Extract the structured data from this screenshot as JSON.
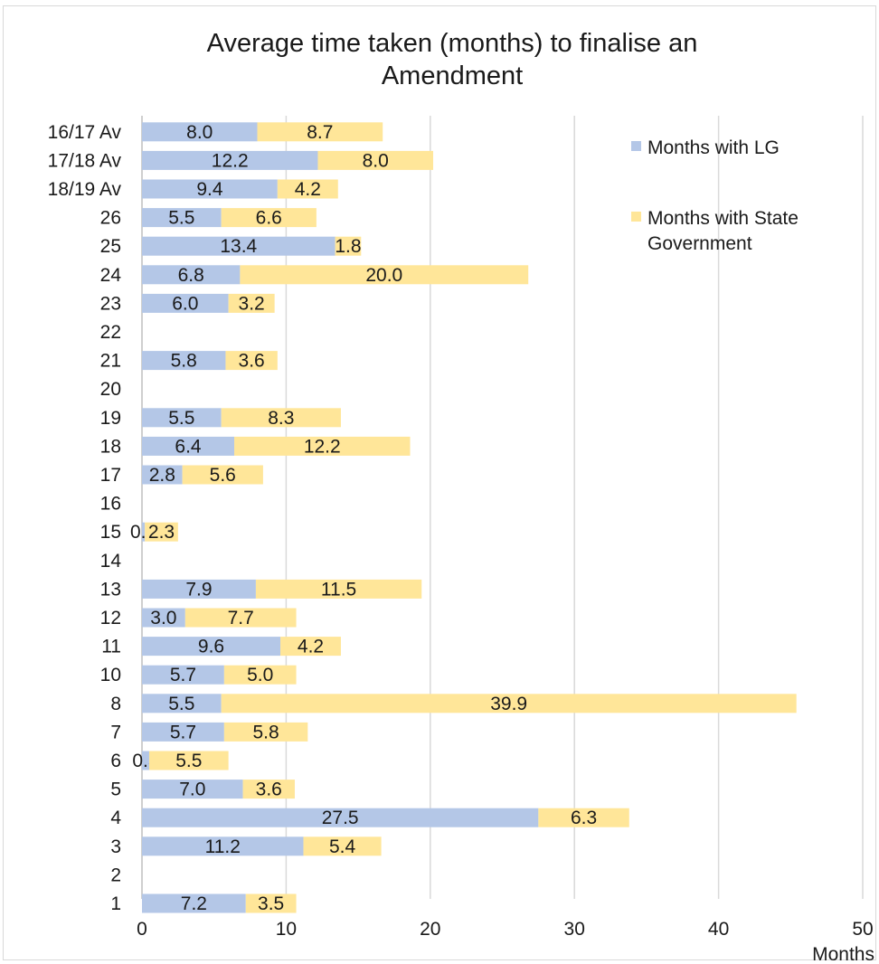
{
  "chart_data": {
    "type": "bar",
    "orientation": "horizontal",
    "stacked": true,
    "title": "Average time taken (months) to finalise an Amendment",
    "title_lines": [
      "Average time taken (months) to finalise an",
      "Amendment"
    ],
    "xlabel": "Months",
    "ylabel": "",
    "xlim": [
      0,
      50
    ],
    "xticks": [
      0,
      10,
      20,
      30,
      40,
      50
    ],
    "grid": "vertical",
    "legend_position": "top-right",
    "categories": [
      "16/17 Av",
      "17/18 Av",
      "18/19 Av",
      "26",
      "25",
      "24",
      "23",
      "22",
      "21",
      "20",
      "19",
      "18",
      "17",
      "16",
      "15",
      "14",
      "13",
      "12",
      "11",
      "10",
      "8",
      "7",
      "6",
      "5",
      "4",
      "3",
      "2",
      "1"
    ],
    "series": [
      {
        "name": "Months with LG",
        "color": "#b4c7e7",
        "values": [
          8.0,
          12.2,
          9.4,
          5.5,
          13.4,
          6.8,
          6.0,
          null,
          5.8,
          null,
          5.5,
          6.4,
          2.8,
          null,
          0.2,
          null,
          7.9,
          3.0,
          9.6,
          5.7,
          5.5,
          5.7,
          0.5,
          7.0,
          27.5,
          11.2,
          null,
          7.2
        ],
        "labels": [
          "8.0",
          "12.2",
          "9.4",
          "5.5",
          "13.4",
          "6.8",
          "6.0",
          "",
          "5.8",
          "",
          "5.5",
          "6.4",
          "2.8",
          "",
          "0.2",
          "",
          "7.9",
          "3.0",
          "9.6",
          "5.7",
          "5.5",
          "5.7",
          "0.5",
          "7.0",
          "27.5",
          "11.2",
          "",
          "7.2"
        ]
      },
      {
        "name": "Months with State Government",
        "name_lines": [
          "Months with State",
          "Government"
        ],
        "color": "#ffe699",
        "values": [
          8.7,
          8.0,
          4.2,
          6.6,
          1.8,
          20.0,
          3.2,
          null,
          3.6,
          null,
          8.3,
          12.2,
          5.6,
          null,
          2.3,
          null,
          11.5,
          7.7,
          4.2,
          5.0,
          39.9,
          5.8,
          5.5,
          3.6,
          6.3,
          5.4,
          null,
          3.5
        ],
        "labels": [
          "8.7",
          "8.0",
          "4.2",
          "6.6",
          "1.8",
          "20.0",
          "3.2",
          "",
          "3.6",
          "",
          "8.3",
          "12.2",
          "5.6",
          "",
          "2.3",
          "",
          "11.5",
          "7.7",
          "4.2",
          "5.0",
          "39.9",
          "5.8",
          "5.5",
          "3.6",
          "6.3",
          "5.4",
          "",
          "3.5"
        ]
      }
    ]
  }
}
